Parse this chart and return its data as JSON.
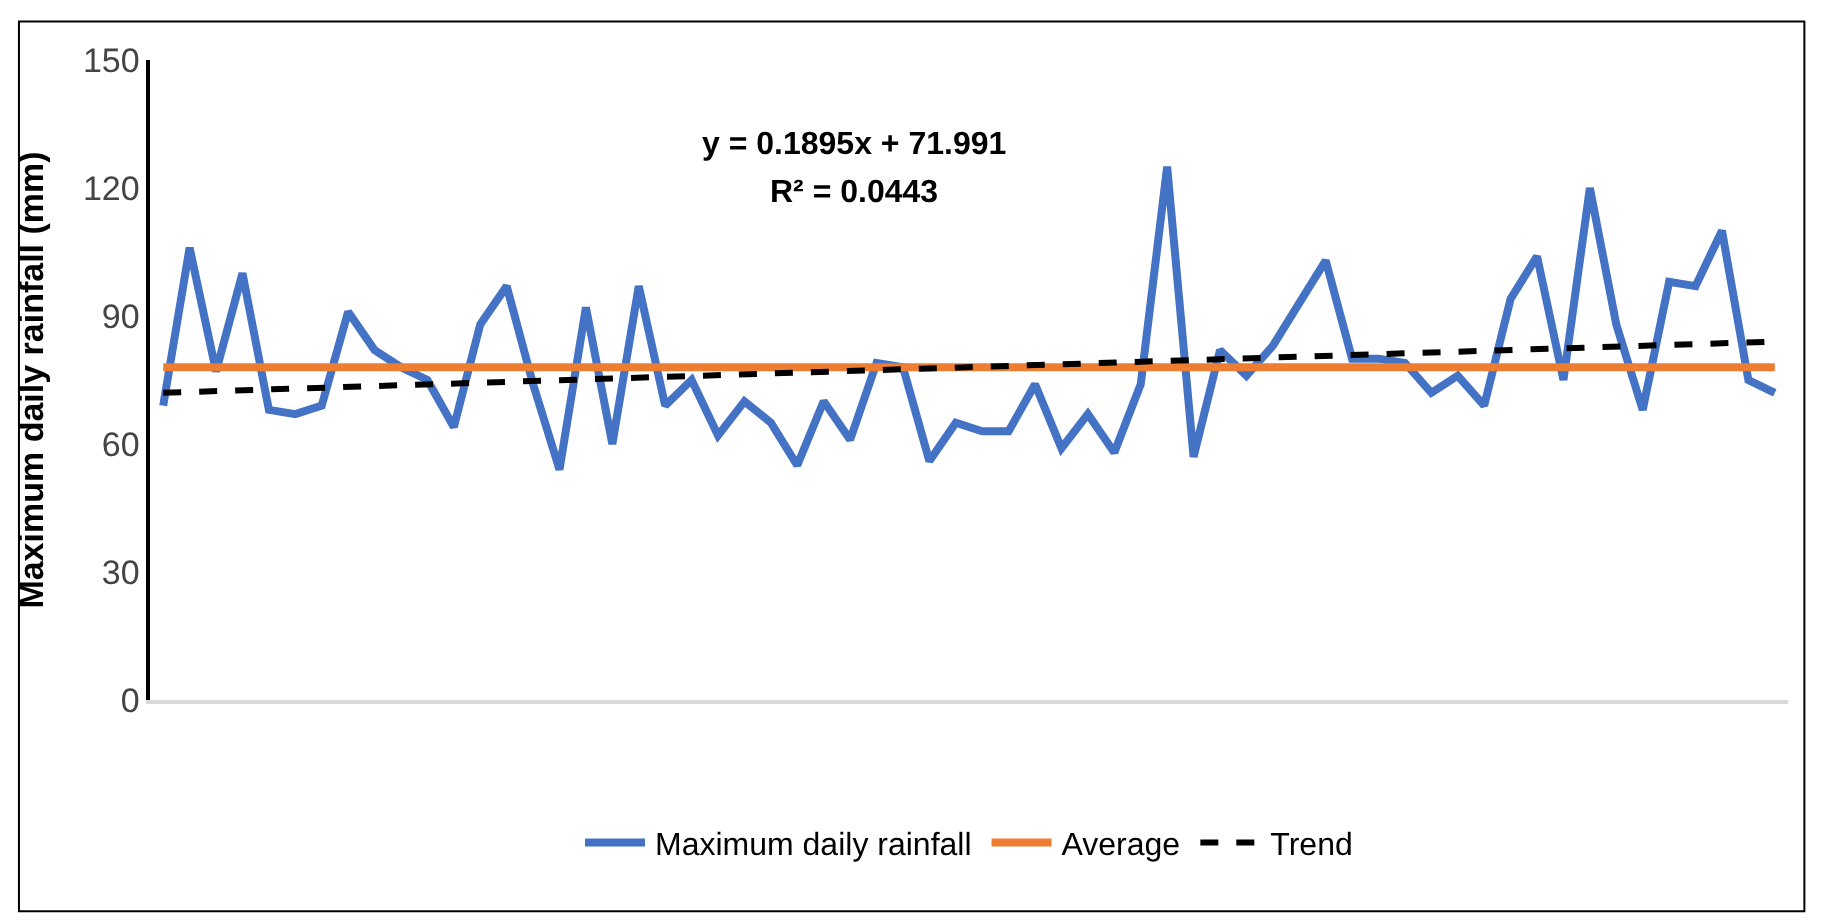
{
  "chart_data": {
    "type": "line",
    "ylabel": "Maximum daily rainfall (mm)",
    "categories": [
      null,
      null,
      null,
      null,
      null,
      null,
      null,
      null,
      null,
      null,
      null,
      null,
      null,
      null,
      null,
      null,
      null,
      null,
      null,
      null,
      null,
      null,
      null,
      null,
      null,
      null,
      null,
      null,
      null,
      null,
      null,
      null,
      null,
      null,
      null,
      null,
      null,
      null,
      null,
      null,
      null,
      null,
      null,
      null,
      null,
      null,
      null,
      null,
      null,
      null,
      null,
      null,
      null,
      null,
      null,
      null,
      null,
      null,
      null,
      null,
      null,
      null
    ],
    "series": [
      {
        "name": "Maximum daily rainfall",
        "color": "#4472c4",
        "line_style": "solid",
        "values": [
          69,
          106,
          77,
          100,
          68,
          67,
          69,
          91,
          82,
          78,
          75,
          64,
          88,
          97,
          74,
          54,
          92,
          60,
          97,
          69,
          75,
          62,
          70,
          65,
          55,
          70,
          61,
          79,
          78,
          56,
          65,
          63,
          63,
          74,
          59,
          67,
          58,
          74,
          125,
          57,
          82,
          76,
          83,
          93,
          103,
          80,
          80,
          79,
          72,
          76,
          69,
          94,
          104,
          75,
          120,
          88,
          68,
          98,
          97,
          110,
          75,
          72
        ]
      },
      {
        "name": "Average",
        "color": "#ed7d31",
        "line_style": "solid",
        "values": [
          78,
          null,
          null,
          null,
          null,
          null,
          null,
          null,
          null,
          null,
          null,
          null,
          null,
          null,
          null,
          null,
          null,
          null,
          null,
          null,
          null,
          null,
          null,
          null,
          null,
          null,
          null,
          null,
          null,
          null,
          null,
          null,
          null,
          null,
          null,
          null,
          null,
          null,
          null,
          null,
          null,
          null,
          null,
          null,
          null,
          null,
          null,
          null,
          null,
          null,
          null,
          null,
          null,
          null,
          null,
          null,
          null,
          null,
          null,
          null,
          null,
          78
        ]
      },
      {
        "name": "Trend",
        "color": "#000000",
        "line_style": "dashed",
        "values": [
          72,
          null,
          null,
          null,
          null,
          null,
          null,
          null,
          null,
          null,
          null,
          null,
          null,
          null,
          null,
          null,
          null,
          null,
          null,
          null,
          null,
          null,
          null,
          null,
          null,
          null,
          null,
          null,
          null,
          null,
          null,
          null,
          null,
          null,
          null,
          null,
          null,
          null,
          null,
          null,
          null,
          null,
          null,
          null,
          null,
          null,
          null,
          null,
          null,
          null,
          null,
          null,
          null,
          null,
          null,
          null,
          null,
          null,
          null,
          null,
          null,
          84
        ]
      }
    ],
    "annotations": [
      "y = 0.1895x + 71.991",
      "R² = 0.0443"
    ],
    "ylim": [
      0,
      150
    ],
    "yticks": [
      0,
      30,
      60,
      90,
      120,
      150
    ],
    "legend": "bottom",
    "marker": "none",
    "tick_labels": "y"
  }
}
